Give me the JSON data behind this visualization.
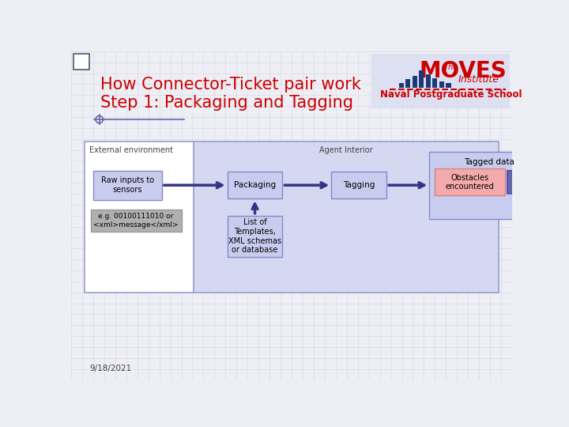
{
  "title_line1": "How Connector-Ticket pair work",
  "title_line2": "Step 1: Packaging and Tagging",
  "title_color": "#cc0000",
  "bg_color": "#eeeef5",
  "date_text": "9/18/2021",
  "external_label": "External environment",
  "agent_label": "Agent Interior",
  "box_packaging_label": "Packaging",
  "box_tagging_label": "Tagging",
  "box_tagged_label": "Tagged data",
  "box_obstacles_label": "Obstacles\nencountered",
  "box_list_label": "List of\nTemplates,\nXML schemas\nor database",
  "box_raw_label": "Raw inputs to\nsensors",
  "box_eg_label": "e.g. 00100111010 or\n<xml>message</xml>",
  "box_blue_border": "#8888cc",
  "box_fill_blue": "#c8ccee",
  "box_fill_agent": "#d4d8f0",
  "box_gray_border": "#999999",
  "box_gray_fill": "#b0b0b0",
  "box_pink": "#f4aaaa",
  "arrow_color": "#333388",
  "grid_color": "#c8c8dc",
  "panel_border": "#a0a4cc"
}
